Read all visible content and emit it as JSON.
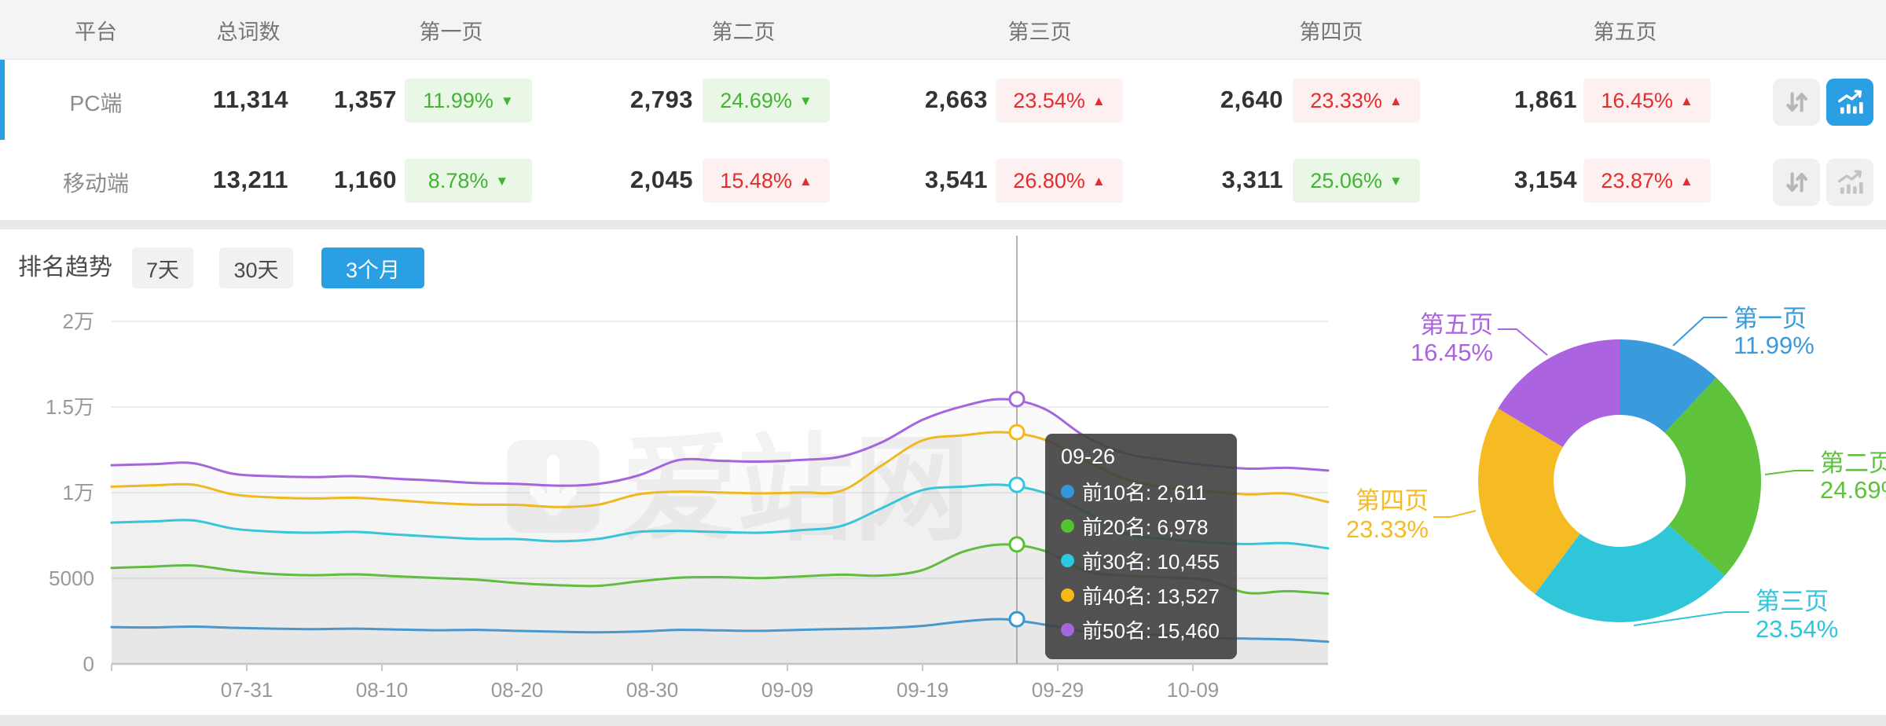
{
  "table": {
    "columns": [
      "平台",
      "总词数",
      "第一页",
      "第二页",
      "第三页",
      "第四页",
      "第五页"
    ],
    "rows": [
      {
        "platform": "PC端",
        "total": "11,314",
        "selected": true,
        "pages": [
          {
            "count": "1,357",
            "pct": "11.99%",
            "dir": "down"
          },
          {
            "count": "2,793",
            "pct": "24.69%",
            "dir": "down"
          },
          {
            "count": "2,663",
            "pct": "23.54%",
            "dir": "up"
          },
          {
            "count": "2,640",
            "pct": "23.33%",
            "dir": "up"
          },
          {
            "count": "1,861",
            "pct": "16.45%",
            "dir": "up"
          }
        ],
        "chart_button_active": true
      },
      {
        "platform": "移动端",
        "total": "13,211",
        "selected": false,
        "pages": [
          {
            "count": "1,160",
            "pct": "8.78%",
            "dir": "down"
          },
          {
            "count": "2,045",
            "pct": "15.48%",
            "dir": "up"
          },
          {
            "count": "3,541",
            "pct": "26.80%",
            "dir": "up"
          },
          {
            "count": "3,311",
            "pct": "25.06%",
            "dir": "down"
          },
          {
            "count": "3,154",
            "pct": "23.87%",
            "dir": "up"
          }
        ],
        "chart_button_active": false
      }
    ]
  },
  "trend": {
    "title": "排名趋势",
    "tabs": [
      {
        "label": "7天",
        "active": false
      },
      {
        "label": "30天",
        "active": false
      },
      {
        "label": "3个月",
        "active": true
      }
    ]
  },
  "watermark": "爱站网",
  "tooltip": {
    "date": "09-26",
    "rows": [
      {
        "label": "前10名",
        "value": "2,611"
      },
      {
        "label": "前20名",
        "value": "6,978"
      },
      {
        "label": "前30名",
        "value": "10,455"
      },
      {
        "label": "前40名",
        "value": "13,527"
      },
      {
        "label": "前50名",
        "value": "15,460"
      }
    ]
  },
  "colors": {
    "accent_blue": "#2b9fe3",
    "badge_down_green": "#43b335",
    "badge_up_red": "#e52d2d",
    "axis_text": "#999999"
  },
  "chart_data": [
    {
      "type": "line",
      "title": "排名趋势 (3个月)",
      "x_tick_labels": [
        "07-31",
        "08-10",
        "08-20",
        "08-30",
        "09-09",
        "09-19",
        "09-29",
        "10-09"
      ],
      "x_start": "07-21",
      "x_step_days": 3,
      "y_ticks": [
        {
          "label": "0",
          "value": 0
        },
        {
          "label": "5000",
          "value": 5000
        },
        {
          "label": "1万",
          "value": 10000
        },
        {
          "label": "1.5万",
          "value": 15000
        },
        {
          "label": "2万",
          "value": 20000
        }
      ],
      "ylim": [
        0,
        20000
      ],
      "grid": true,
      "series": [
        {
          "name": "前10名",
          "color": "#3398db",
          "values": [
            2150,
            2130,
            2180,
            2110,
            2060,
            2030,
            2060,
            2010,
            1970,
            1990,
            1930,
            1880,
            1850,
            1890,
            1990,
            1960,
            1930,
            1990,
            2040,
            2090,
            2220,
            2480,
            2611,
            2300,
            1900,
            1750,
            1680,
            1520,
            1480,
            1430,
            1300
          ]
        },
        {
          "name": "前20名",
          "color": "#57c22f",
          "values": [
            5600,
            5680,
            5750,
            5450,
            5250,
            5180,
            5230,
            5120,
            5020,
            4920,
            4720,
            4600,
            4560,
            4820,
            5030,
            5070,
            5010,
            5110,
            5210,
            5160,
            5480,
            6550,
            6978,
            6600,
            5450,
            5150,
            5050,
            4900,
            4150,
            4250,
            4100
          ]
        },
        {
          "name": "前30名",
          "color": "#2cc9e2",
          "values": [
            8250,
            8320,
            8380,
            7900,
            7720,
            7660,
            7710,
            7560,
            7420,
            7300,
            7290,
            7160,
            7300,
            7710,
            7760,
            7700,
            7660,
            7810,
            8060,
            9100,
            10150,
            10350,
            10455,
            10000,
            8900,
            7600,
            7300,
            7100,
            7000,
            7050,
            6750
          ]
        },
        {
          "name": "前40名",
          "color": "#f5ba18",
          "values": [
            10350,
            10420,
            10470,
            9900,
            9720,
            9660,
            9700,
            9560,
            9400,
            9300,
            9290,
            9160,
            9300,
            9910,
            10060,
            10010,
            9960,
            10010,
            10110,
            11600,
            13050,
            13350,
            13527,
            13100,
            11900,
            10800,
            10300,
            10100,
            9900,
            9950,
            9450
          ]
        },
        {
          "name": "前50名",
          "color": "#a566dd",
          "values": [
            11600,
            11660,
            11720,
            11100,
            10960,
            10910,
            10960,
            10810,
            10700,
            10560,
            10510,
            10410,
            10510,
            11010,
            11910,
            11860,
            11810,
            11910,
            12110,
            12950,
            14250,
            15050,
            15460,
            14900,
            13300,
            12300,
            11900,
            11600,
            11400,
            11450,
            11290
          ]
        }
      ],
      "highlight": {
        "date": "09-26",
        "values": {
          "前10名": 2611,
          "前20名": 6978,
          "前30名": 10455,
          "前40名": 13527,
          "前50名": 15460
        }
      }
    },
    {
      "type": "pie",
      "donut": true,
      "slices": [
        {
          "label": "第一页",
          "pct": 11.99,
          "color": "#3a9bdc"
        },
        {
          "label": "第二页",
          "pct": 24.69,
          "color": "#5ec33b"
        },
        {
          "label": "第三页",
          "pct": 23.54,
          "color": "#2fc6da"
        },
        {
          "label": "第四页",
          "pct": 23.33,
          "color": "#f6bb22"
        },
        {
          "label": "第五页",
          "pct": 16.45,
          "color": "#ab63e0"
        }
      ]
    }
  ]
}
